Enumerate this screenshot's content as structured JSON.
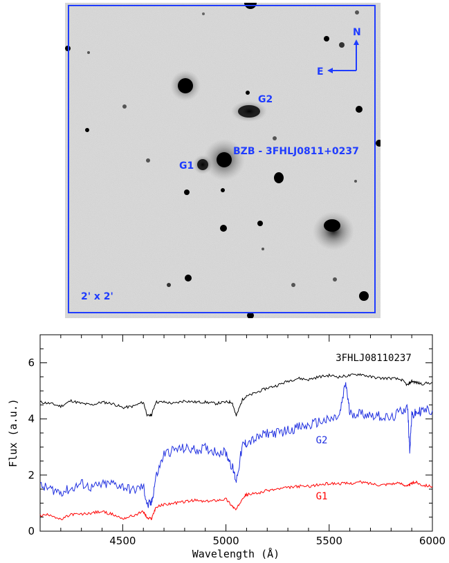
{
  "image_panel": {
    "object_label": "BZB - 3FHLJ0811+0237",
    "galaxy1_label": "G1",
    "galaxy2_label": "G2",
    "north_label": "N",
    "east_label": "E",
    "scale_label": "2' x 2'",
    "accent_color": "#1f3cff"
  },
  "chart_data": {
    "type": "line",
    "xlabel": "Wavelength (Å)",
    "ylabel": "Flux (a.u.)",
    "xlim": [
      4100,
      6000
    ],
    "ylim": [
      0,
      7
    ],
    "xticks": [
      4500,
      5000,
      5500,
      6000
    ],
    "yticks": [
      0,
      2,
      4,
      6
    ],
    "series": [
      {
        "name": "3FHLJ08110237",
        "color": "#000000",
        "x": [
          4100,
          4150,
          4200,
          4250,
          4300,
          4350,
          4400,
          4450,
          4500,
          4550,
          4600,
          4620,
          4640,
          4660,
          4700,
          4750,
          4800,
          4850,
          4900,
          4950,
          5000,
          5030,
          5050,
          5080,
          5100,
          5150,
          5200,
          5250,
          5300,
          5350,
          5400,
          5450,
          5500,
          5550,
          5600,
          5650,
          5700,
          5750,
          5800,
          5850,
          5880,
          5900,
          5920,
          5950,
          6000
        ],
        "y": [
          4.6,
          4.55,
          4.45,
          4.65,
          4.55,
          4.5,
          4.6,
          4.55,
          4.4,
          4.45,
          4.6,
          4.1,
          4.15,
          4.6,
          4.6,
          4.55,
          4.65,
          4.6,
          4.6,
          4.55,
          4.6,
          4.6,
          4.1,
          4.7,
          4.8,
          4.95,
          5.1,
          5.2,
          5.35,
          5.45,
          5.4,
          5.5,
          5.55,
          5.5,
          5.55,
          5.6,
          5.5,
          5.45,
          5.45,
          5.4,
          5.2,
          5.35,
          5.3,
          5.25,
          5.3
        ]
      },
      {
        "name": "G2",
        "color": "#1f2fe0",
        "x": [
          4100,
          4150,
          4200,
          4250,
          4300,
          4350,
          4400,
          4450,
          4500,
          4550,
          4600,
          4620,
          4640,
          4660,
          4700,
          4750,
          4800,
          4850,
          4900,
          4950,
          5000,
          5030,
          5050,
          5080,
          5100,
          5150,
          5200,
          5250,
          5300,
          5350,
          5400,
          5450,
          5500,
          5550,
          5580,
          5600,
          5650,
          5700,
          5750,
          5800,
          5850,
          5880,
          5890,
          5900,
          5920,
          5950,
          6000
        ],
        "y": [
          1.6,
          1.5,
          1.4,
          1.5,
          1.7,
          1.55,
          1.65,
          1.7,
          1.6,
          1.45,
          1.6,
          0.9,
          1.0,
          1.9,
          2.75,
          2.9,
          2.95,
          2.9,
          2.95,
          2.85,
          2.8,
          2.3,
          1.8,
          3.05,
          3.15,
          3.3,
          3.5,
          3.5,
          3.6,
          3.7,
          3.75,
          3.9,
          3.95,
          4.1,
          5.3,
          4.2,
          4.2,
          4.15,
          4.1,
          4.0,
          4.3,
          4.4,
          2.9,
          4.1,
          4.2,
          4.3,
          4.3
        ]
      },
      {
        "name": "G1",
        "color": "#ff0000",
        "x": [
          4100,
          4150,
          4200,
          4250,
          4300,
          4350,
          4400,
          4450,
          4500,
          4550,
          4600,
          4620,
          4640,
          4660,
          4700,
          4750,
          4800,
          4850,
          4900,
          4950,
          5000,
          5030,
          5050,
          5080,
          5100,
          5150,
          5200,
          5250,
          5300,
          5350,
          5400,
          5450,
          5500,
          5550,
          5600,
          5650,
          5700,
          5750,
          5800,
          5850,
          5880,
          5900,
          5920,
          5950,
          6000
        ],
        "y": [
          0.55,
          0.6,
          0.4,
          0.6,
          0.6,
          0.65,
          0.7,
          0.6,
          0.45,
          0.55,
          0.7,
          0.45,
          0.45,
          0.85,
          0.95,
          1.0,
          1.05,
          1.1,
          1.05,
          1.1,
          1.15,
          0.9,
          0.75,
          1.2,
          1.3,
          1.35,
          1.45,
          1.5,
          1.55,
          1.6,
          1.6,
          1.65,
          1.7,
          1.7,
          1.7,
          1.75,
          1.7,
          1.65,
          1.7,
          1.7,
          1.6,
          1.7,
          1.75,
          1.65,
          1.6
        ]
      }
    ]
  }
}
